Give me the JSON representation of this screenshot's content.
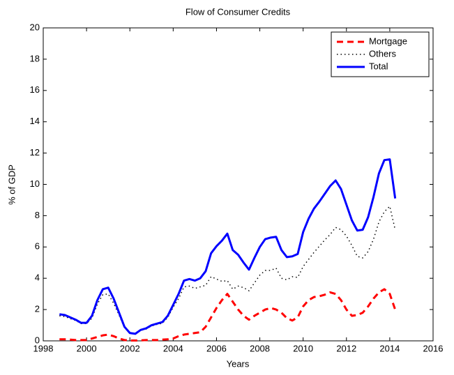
{
  "chart_data": {
    "type": "line",
    "title": "Flow of Consumer Credits",
    "xlabel": "Years",
    "ylabel": "% of GDP",
    "x": [
      1998.75,
      1999,
      1999.25,
      1999.5,
      1999.75,
      2000,
      2000.25,
      2000.5,
      2000.75,
      2001,
      2001.25,
      2001.5,
      2001.75,
      2002,
      2002.25,
      2002.5,
      2002.75,
      2003,
      2003.25,
      2003.5,
      2003.75,
      2004,
      2004.25,
      2004.5,
      2004.75,
      2005,
      2005.25,
      2005.5,
      2005.75,
      2006,
      2006.25,
      2006.5,
      2006.75,
      2007,
      2007.25,
      2007.5,
      2007.75,
      2008,
      2008.25,
      2008.5,
      2008.75,
      2009,
      2009.25,
      2009.5,
      2009.75,
      2010,
      2010.25,
      2010.5,
      2010.75,
      2011,
      2011.25,
      2011.5,
      2011.75,
      2012,
      2012.25,
      2012.5,
      2012.75,
      2013,
      2013.25,
      2013.5,
      2013.75,
      2014,
      2014.25
    ],
    "series": [
      {
        "name": "Mortgage",
        "color": "#ff0000",
        "dash": "dashed",
        "values": [
          0.1,
          0.1,
          0.08,
          0.05,
          0.05,
          0.05,
          0.15,
          0.25,
          0.35,
          0.4,
          0.3,
          0.15,
          0.05,
          0.02,
          0.02,
          0.03,
          0.05,
          0.05,
          0.05,
          0.08,
          0.1,
          0.15,
          0.3,
          0.4,
          0.45,
          0.5,
          0.55,
          0.9,
          1.5,
          2.1,
          2.6,
          3.0,
          2.5,
          2.0,
          1.6,
          1.35,
          1.6,
          1.8,
          2.0,
          2.1,
          2.0,
          1.8,
          1.45,
          1.3,
          1.5,
          2.2,
          2.6,
          2.8,
          2.85,
          2.95,
          3.1,
          3.0,
          2.6,
          2.0,
          1.6,
          1.65,
          1.8,
          2.2,
          2.7,
          3.1,
          3.3,
          3.0,
          2.0
        ]
      },
      {
        "name": "Others",
        "color": "#000000",
        "dash": "dotted",
        "values": [
          1.6,
          1.55,
          1.42,
          1.3,
          1.1,
          1.1,
          1.45,
          2.35,
          2.95,
          3.0,
          2.4,
          1.65,
          0.85,
          0.48,
          0.43,
          0.67,
          0.75,
          0.95,
          1.05,
          1.12,
          1.5,
          2.15,
          2.7,
          3.45,
          3.5,
          3.35,
          3.45,
          3.55,
          4.1,
          3.95,
          3.8,
          3.85,
          3.3,
          3.5,
          3.4,
          3.2,
          3.7,
          4.2,
          4.5,
          4.5,
          4.65,
          4.0,
          3.9,
          4.1,
          4.05,
          4.75,
          5.2,
          5.65,
          6.05,
          6.45,
          6.8,
          7.25,
          7.1,
          6.7,
          6.1,
          5.4,
          5.3,
          5.7,
          6.5,
          7.6,
          8.25,
          8.6,
          7.1
        ]
      },
      {
        "name": "Total",
        "color": "#0000ff",
        "dash": "solid",
        "values": [
          1.7,
          1.65,
          1.5,
          1.35,
          1.15,
          1.15,
          1.6,
          2.6,
          3.3,
          3.4,
          2.7,
          1.8,
          0.9,
          0.5,
          0.45,
          0.7,
          0.8,
          1.0,
          1.1,
          1.2,
          1.6,
          2.3,
          3.0,
          3.85,
          3.95,
          3.85,
          4.0,
          4.45,
          5.6,
          6.05,
          6.4,
          6.85,
          5.8,
          5.5,
          5.0,
          4.55,
          5.3,
          6.0,
          6.5,
          6.6,
          6.65,
          5.8,
          5.35,
          5.4,
          5.55,
          6.95,
          7.8,
          8.45,
          8.9,
          9.4,
          9.9,
          10.25,
          9.7,
          8.7,
          7.7,
          7.05,
          7.1,
          7.9,
          9.2,
          10.7,
          11.55,
          11.6,
          9.1
        ]
      }
    ],
    "xlim": [
      1998,
      2016
    ],
    "xticks": [
      1998,
      2000,
      2002,
      2004,
      2006,
      2008,
      2010,
      2012,
      2014,
      2016
    ],
    "ylim": [
      0,
      20
    ],
    "yticks": [
      0,
      2,
      4,
      6,
      8,
      10,
      12,
      14,
      16,
      18,
      20
    ],
    "legend": "top-right",
    "grid": false
  }
}
